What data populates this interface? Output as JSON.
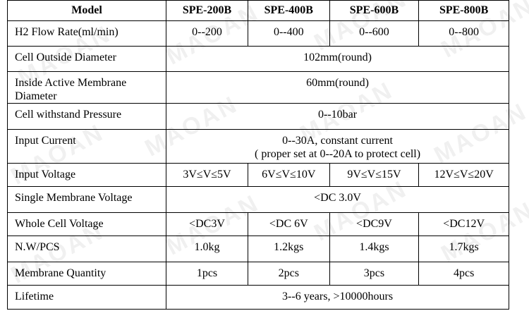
{
  "header": {
    "label": "Model",
    "models": [
      "SPE-200B",
      "SPE-400B",
      "SPE-600B",
      "SPE-800B"
    ]
  },
  "rows": {
    "h2_flow": {
      "label": "H2 Flow Rate(ml/min)",
      "values": [
        "0--200",
        "0--400",
        "0--600",
        "0--800"
      ]
    },
    "outside_diameter": {
      "label": "Cell Outside Diameter",
      "value": "102mm(round)"
    },
    "inside_diameter": {
      "label_line1": "Inside Active Membrane",
      "label_line2": "Diameter",
      "value": "60mm(round)"
    },
    "pressure": {
      "label": "Cell withstand Pressure",
      "value": "0--10bar"
    },
    "input_current": {
      "label": "Input Current",
      "value_line1": "0--30A, constant current",
      "value_line2": "( proper set at 0--20A to protect cell)"
    },
    "input_voltage": {
      "label": "Input Voltage",
      "values": [
        "3V≤V≤5V",
        "6V≤V≤10V",
        "9V≤V≤15V",
        "12V≤V≤20V"
      ]
    },
    "single_voltage": {
      "label": "Single Membrane Voltage",
      "value": "<DC 3.0V"
    },
    "whole_voltage": {
      "label": "Whole Cell Voltage",
      "values": [
        "<DC3V",
        "<DC 6V",
        "<DC9V",
        "<DC12V"
      ]
    },
    "weight": {
      "label": "N.W/PCS",
      "values": [
        "1.0kg",
        "1.2kgs",
        "1.4kgs",
        "1.7kgs"
      ]
    },
    "membrane_qty": {
      "label": "Membrane Quantity",
      "values": [
        "1pcs",
        "2pcs",
        "3pcs",
        "4pcs"
      ]
    },
    "lifetime": {
      "label": "Lifetime",
      "value": "3--6 years, >10000hours"
    }
  },
  "watermark": "MAOAN"
}
